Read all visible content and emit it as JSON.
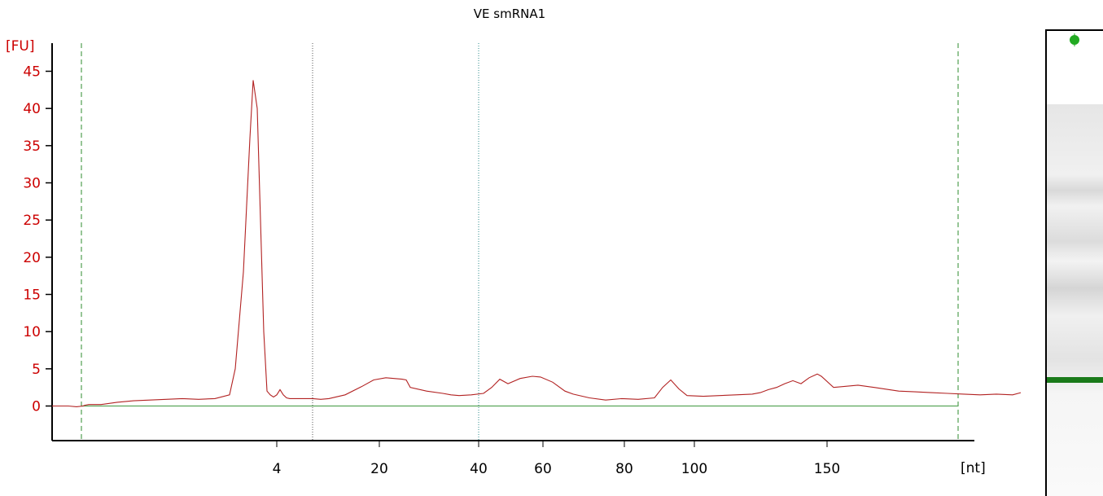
{
  "chart_data": {
    "type": "line",
    "title": "VE smRNA1",
    "ylabel": "[FU]",
    "xlabel": "[nt]",
    "ylim": [
      -4,
      47
    ],
    "y_ticks": [
      "0",
      "5",
      "10",
      "15",
      "20",
      "25",
      "30",
      "35",
      "40",
      "45"
    ],
    "x_ticks": [
      "4",
      "20",
      "40",
      "60",
      "80",
      "100",
      "150"
    ],
    "colors": {
      "trace": "#b22222",
      "baseline": "#2e8b2e",
      "axis_y": "#cc0000",
      "marker": "#2e8b2e",
      "gel_band": "#1a7a1a"
    },
    "series": [
      {
        "x": [
          0,
          10,
          20,
          30,
          38,
          40,
          45,
          60,
          80,
          100,
          120,
          140,
          160,
          180,
          200,
          218,
          225,
          235,
          243,
          247,
          252,
          256,
          260,
          264,
          268,
          272,
          276,
          280,
          284,
          288,
          292,
          300,
          305,
          310,
          320,
          330,
          340,
          360,
          380,
          395,
          410,
          420,
          430,
          435,
          440,
          460,
          480,
          490,
          500,
          515,
          530,
          540,
          550,
          560,
          575,
          590,
          600,
          615,
          630,
          640,
          660,
          680,
          700,
          720,
          740,
          750,
          760,
          770,
          780,
          800,
          820,
          840,
          860,
          870,
          880,
          890,
          900,
          910,
          920,
          930,
          940,
          945,
          960,
          990,
          1010,
          1040,
          1060,
          1080,
          1100,
          1120,
          1140,
          1160,
          1180,
          1190
        ],
        "y": [
          0,
          0,
          0,
          -0.1,
          0,
          0.1,
          0.2,
          0.2,
          0.5,
          0.7,
          0.8,
          0.9,
          1.0,
          0.9,
          1.0,
          1.5,
          5,
          18,
          36,
          43.8,
          40,
          25,
          10,
          2,
          1.5,
          1.2,
          1.5,
          2.2,
          1.5,
          1.1,
          1.0,
          1.0,
          1.0,
          1.0,
          1.0,
          0.9,
          1.0,
          1.5,
          2.6,
          3.5,
          3.8,
          3.7,
          3.6,
          3.5,
          2.5,
          2.0,
          1.7,
          1.5,
          1.4,
          1.5,
          1.7,
          2.5,
          3.6,
          3.0,
          3.7,
          4.0,
          3.9,
          3.2,
          2.0,
          1.6,
          1.1,
          0.8,
          1.0,
          0.9,
          1.1,
          2.5,
          3.5,
          2.3,
          1.4,
          1.3,
          1.4,
          1.5,
          1.6,
          1.8,
          2.2,
          2.5,
          3.0,
          3.4,
          3.0,
          3.8,
          4.3,
          4.0,
          2.5,
          2.8,
          2.5,
          2.0,
          1.9,
          1.8,
          1.7,
          1.6,
          1.5,
          1.6,
          1.5,
          1.8
        ]
      }
    ]
  }
}
